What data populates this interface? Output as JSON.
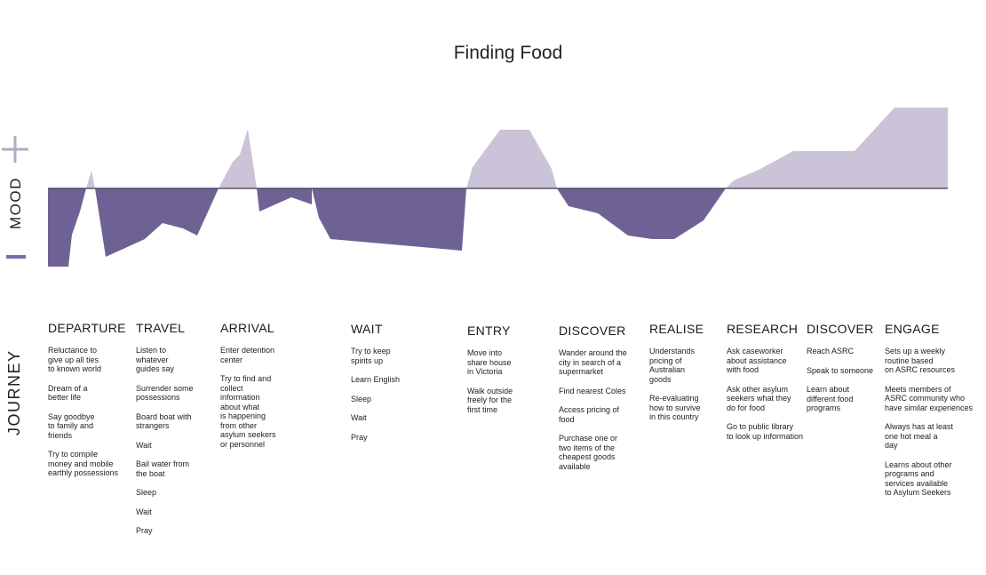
{
  "title": "Finding Food",
  "axis": {
    "mood_label": "MOOD",
    "journey_label": "JOURNEY",
    "plus_icon": "plus-icon",
    "minus_icon": "minus-icon"
  },
  "colors": {
    "positive": "#cbc3d7",
    "negative": "#6e6295",
    "baseline": "#3e3a55",
    "icon": "#b3a8c9",
    "minus": "#7a6da1"
  },
  "stages": [
    {
      "title": "DEPARTURE",
      "items": [
        "Reluctance to\ngive up all ties\nto known world",
        "Dream of a\nbetter life",
        "Say goodbye\nto family and\nfriends",
        "Try to compile\nmoney and mobile\nearthly possessions"
      ]
    },
    {
      "title": "TRAVEL",
      "items": [
        "Listen to\nwhatever\nguides say",
        "Surrender some\npossessions",
        "Board boat with\nstrangers",
        "Wait",
        "Bail water from\nthe boat",
        "Sleep",
        "Wait",
        "Pray"
      ]
    },
    {
      "title": "ARRIVAL",
      "items": [
        "Enter detention\ncenter",
        "Try to find and\ncollect\ninformation\nabout what\nis happening\nfrom other\nasylum seekers\nor personnel"
      ]
    },
    {
      "title": "WAIT",
      "items": [
        "Try to keep\nspirits up",
        "Learn English",
        "Sleep",
        "Wait",
        "Pray"
      ]
    },
    {
      "title": "ENTRY",
      "items": [
        "Move into\nshare house\nin Victoria",
        "Walk outside\nfreely for the\nfirst time"
      ]
    },
    {
      "title": "DISCOVER",
      "items": [
        "Wander around the\ncity in search of a\nsupermarket",
        "Find nearest Coles",
        "Access pricing of\nfood",
        "Purchase one or\ntwo items of the\ncheapest goods\navailable"
      ]
    },
    {
      "title": "REALISE",
      "items": [
        "Understands\npricing of\nAustralian\ngoods",
        "Re-evaluating\nhow to survive\nin this country"
      ]
    },
    {
      "title": "RESEARCH",
      "items": [
        "Ask caseworker\nabout assistance\nwith food",
        "Ask other asylum\nseekers what they\ndo for food",
        "Go to public library\nto look up information"
      ]
    },
    {
      "title": "DISCOVER",
      "items": [
        "Reach ASRC",
        "Speak to someone",
        "Learn about\ndifferent food\nprograms"
      ]
    },
    {
      "title": "ENGAGE",
      "items": [
        "Sets up a weekly\nroutine based\non ASRC resources",
        "Meets members of\nASRC community who\nhave similar experiences",
        "Always has at least\none hot meal a\nday",
        "Learns about other\nprograms and\nservices available\nto Asylum Seekers"
      ]
    }
  ]
}
